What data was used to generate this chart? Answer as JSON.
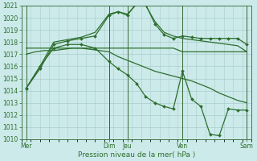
{
  "xlabel": "Pression niveau de la mer( hPa )",
  "bg_color": "#cceaea",
  "grid_color": "#aacccc",
  "line_color": "#2d6e2d",
  "ylim": [
    1010,
    1021
  ],
  "yticks": [
    1010,
    1011,
    1012,
    1013,
    1014,
    1015,
    1016,
    1017,
    1018,
    1019,
    1020,
    1021
  ],
  "xlim": [
    0,
    50
  ],
  "day_labels": [
    "Mer",
    "Dim",
    "Jeu",
    "Ven",
    "Sam"
  ],
  "day_positions": [
    1,
    19,
    23,
    35,
    49
  ],
  "vline_positions": [
    1,
    19,
    23,
    35,
    49
  ],
  "series": [
    {
      "x": [
        1,
        3,
        5,
        7,
        9,
        11,
        13,
        15,
        17,
        19,
        21,
        23,
        25,
        27,
        29,
        31,
        33,
        35,
        37,
        39,
        41,
        43,
        45,
        47,
        49
      ],
      "y": [
        1017.5,
        1017.5,
        1017.5,
        1017.5,
        1017.5,
        1017.5,
        1017.5,
        1017.5,
        1017.5,
        1017.5,
        1017.5,
        1017.5,
        1017.5,
        1017.5,
        1017.5,
        1017.5,
        1017.5,
        1017.2,
        1017.2,
        1017.2,
        1017.2,
        1017.2,
        1017.2,
        1017.2,
        1017.2
      ],
      "marker": false,
      "lw": 0.9
    },
    {
      "x": [
        1,
        3,
        5,
        7,
        9,
        11,
        13,
        15,
        17,
        19,
        21,
        23,
        25,
        27,
        29,
        31,
        33,
        35,
        37,
        39,
        41,
        43,
        45,
        47,
        49
      ],
      "y": [
        1017.0,
        1017.2,
        1017.3,
        1017.3,
        1017.4,
        1017.5,
        1017.5,
        1017.4,
        1017.3,
        1017.2,
        1016.8,
        1016.5,
        1016.2,
        1015.9,
        1015.6,
        1015.4,
        1015.2,
        1015.0,
        1014.8,
        1014.5,
        1014.2,
        1013.8,
        1013.5,
        1013.2,
        1013.0
      ],
      "marker": false,
      "lw": 0.9
    },
    {
      "x": [
        1,
        4,
        7,
        10,
        13,
        16,
        19,
        21,
        23,
        25,
        27,
        29,
        31,
        33,
        35,
        37,
        39,
        41,
        43,
        45,
        47,
        49
      ],
      "y": [
        1014.2,
        1015.8,
        1017.8,
        1018.1,
        1018.3,
        1018.5,
        1020.2,
        1020.5,
        1020.2,
        1021.2,
        1021.1,
        1019.5,
        1018.6,
        1018.3,
        1018.5,
        1018.4,
        1018.3,
        1018.3,
        1018.3,
        1018.3,
        1018.3,
        1017.8
      ],
      "marker": true,
      "lw": 0.9
    },
    {
      "x": [
        1,
        4,
        7,
        10,
        13,
        16,
        19,
        21,
        23,
        25,
        27,
        29,
        31,
        33,
        35,
        37,
        39,
        41,
        43,
        45,
        47,
        49
      ],
      "y": [
        1014.2,
        1016.0,
        1018.0,
        1018.2,
        1018.4,
        1018.8,
        1020.3,
        1020.5,
        1020.3,
        1021.1,
        1021.0,
        1019.7,
        1018.8,
        1018.5,
        1018.3,
        1018.2,
        1018.1,
        1018.0,
        1017.9,
        1017.8,
        1017.7,
        1017.2
      ],
      "marker": false,
      "lw": 0.9
    },
    {
      "x": [
        1,
        4,
        7,
        10,
        13,
        16,
        19,
        21,
        23,
        25,
        27,
        29,
        31,
        33,
        35,
        37,
        39,
        41,
        43,
        45,
        47,
        49
      ],
      "y": [
        1014.2,
        1016.0,
        1017.5,
        1017.8,
        1017.8,
        1017.5,
        1016.4,
        1015.8,
        1015.3,
        1014.6,
        1013.5,
        1013.0,
        1012.7,
        1012.5,
        1015.6,
        1013.3,
        1012.7,
        1010.4,
        1010.3,
        1012.5,
        1012.4,
        1012.4
      ],
      "marker": true,
      "lw": 0.9
    }
  ]
}
